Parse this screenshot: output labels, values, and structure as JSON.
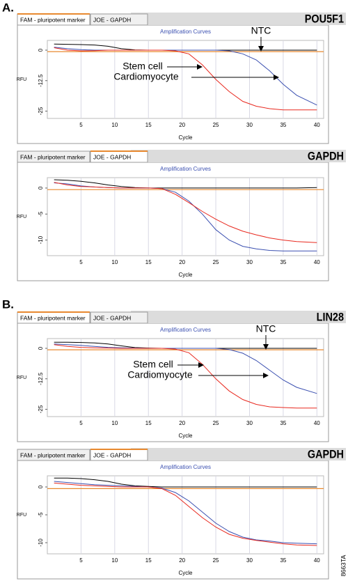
{
  "panels": [
    {
      "label": "A."
    },
    {
      "label": "B."
    }
  ],
  "figure_id": "8663TA",
  "chart_data": [
    {
      "type": "line",
      "tabs": [
        "FAM - pluripotent marker",
        "JOE - GAPDH"
      ],
      "active_tab": 0,
      "gene": "POU5F1",
      "title": "Amplification Curves",
      "xlabel": "Cycle",
      "ylabel": "RFU",
      "x": [
        1,
        3,
        5,
        7,
        9,
        11,
        13,
        15,
        17,
        19,
        21,
        23,
        25,
        27,
        29,
        31,
        33,
        35,
        37,
        40
      ],
      "xlim": [
        0,
        41
      ],
      "xticks": [
        5,
        10,
        15,
        20,
        25,
        30,
        35,
        40
      ],
      "ylim": [
        -28,
        4
      ],
      "yticks": [
        0,
        -12.5,
        -25
      ],
      "grid": true,
      "threshold": -0.6,
      "threshold_color": "#e8892f",
      "series": [
        {
          "color": "#000000",
          "values": [
            2.5,
            2.4,
            2.3,
            2.1,
            1.6,
            0.6,
            0.1,
            0,
            0,
            0,
            0,
            0,
            0,
            0,
            0,
            0,
            0,
            0,
            0,
            0
          ]
        },
        {
          "color": "#3a4fb0",
          "values": [
            1.2,
            0.6,
            0.2,
            0,
            0,
            0,
            0,
            0,
            0,
            0,
            0,
            0,
            0,
            -0.3,
            -1.5,
            -4,
            -8.5,
            -14,
            -18.5,
            -22.5
          ]
        },
        {
          "color": "#e8281e",
          "values": [
            1,
            0,
            -0.3,
            -0.2,
            0,
            0,
            0,
            0,
            0,
            -0.3,
            -1.5,
            -6,
            -12,
            -17,
            -21,
            -23,
            -24,
            -24.5,
            -24.5,
            -24.5
          ]
        }
      ],
      "annotations": [
        {
          "text": "NTC"
        },
        {
          "text": "Stem cell"
        },
        {
          "text": "Cardiomyocyte"
        }
      ]
    },
    {
      "type": "line",
      "tabs": [
        "FAM - pluripotent marker",
        "JOE - GAPDH"
      ],
      "active_tab": 1,
      "gene": "GAPDH",
      "title": "Amplification Curves",
      "xlabel": "Cycle",
      "ylabel": "RFU",
      "x": [
        1,
        3,
        5,
        7,
        9,
        11,
        13,
        15,
        17,
        19,
        21,
        23,
        25,
        27,
        29,
        31,
        33,
        35,
        37,
        40
      ],
      "xlim": [
        0,
        41
      ],
      "xticks": [
        5,
        10,
        15,
        20,
        25,
        30,
        35,
        40
      ],
      "ylim": [
        -13,
        2
      ],
      "yticks": [
        0,
        -5,
        -10
      ],
      "grid": true,
      "threshold": -0.3,
      "threshold_color": "#e8892f",
      "series": [
        {
          "color": "#000000",
          "values": [
            1.6,
            1.5,
            1.3,
            1,
            0.6,
            0.3,
            0.1,
            0,
            0,
            0,
            0,
            0,
            0,
            0,
            0,
            0,
            0,
            0,
            0,
            0.1
          ]
        },
        {
          "color": "#3a4fb0",
          "values": [
            1,
            0.8,
            0.4,
            0.2,
            0.1,
            0,
            0,
            0,
            -0.1,
            -0.8,
            -2.5,
            -5,
            -8,
            -10,
            -11.2,
            -11.7,
            -12,
            -12.1,
            -12.1,
            -12.1
          ]
        },
        {
          "color": "#e8281e",
          "values": [
            1.1,
            0.6,
            0.3,
            0.2,
            0.1,
            0,
            0,
            0,
            -0.1,
            -1.2,
            -2.8,
            -4.5,
            -6,
            -7.3,
            -8.3,
            -9,
            -9.6,
            -10,
            -10.3,
            -10.5
          ]
        }
      ],
      "annotations": []
    },
    {
      "type": "line",
      "tabs": [
        "FAM - pluripotent marker",
        "JOE - GAPDH"
      ],
      "active_tab": 0,
      "gene": "LIN28",
      "title": "Amplification Curves",
      "xlabel": "Cycle",
      "ylabel": "RFU",
      "x": [
        1,
        3,
        5,
        7,
        9,
        11,
        13,
        15,
        17,
        19,
        21,
        23,
        25,
        27,
        29,
        31,
        33,
        35,
        37,
        40
      ],
      "xlim": [
        0,
        41
      ],
      "xticks": [
        5,
        10,
        15,
        20,
        25,
        30,
        35,
        40
      ],
      "ylim": [
        -28,
        4
      ],
      "yticks": [
        0,
        -12.5,
        -25
      ],
      "grid": true,
      "threshold": -0.6,
      "threshold_color": "#e8892f",
      "series": [
        {
          "color": "#000000",
          "values": [
            2.5,
            2.5,
            2.4,
            2.2,
            1.8,
            1,
            0.3,
            0.1,
            0,
            0,
            0,
            0,
            0,
            0,
            0,
            0,
            0,
            0,
            0,
            0
          ]
        },
        {
          "color": "#3a4fb0",
          "values": [
            1.8,
            1.5,
            1.2,
            0.8,
            0.4,
            0.2,
            0.1,
            0,
            0,
            0,
            0,
            0,
            0,
            -0.5,
            -2,
            -5,
            -9,
            -13,
            -16,
            -18.5
          ]
        },
        {
          "color": "#e8281e",
          "values": [
            1.5,
            0.8,
            0.4,
            0.2,
            0.1,
            0,
            0,
            0,
            0,
            -0.3,
            -1.8,
            -6.5,
            -12.5,
            -17.5,
            -21,
            -23,
            -24,
            -24.3,
            -24.5,
            -24.5
          ]
        }
      ],
      "annotations": [
        {
          "text": "NTC"
        },
        {
          "text": "Stem cell"
        },
        {
          "text": "Cardiomyocyte"
        }
      ]
    },
    {
      "type": "line",
      "tabs": [
        "FAM - pluripotent marker",
        "JOE - GAPDH"
      ],
      "active_tab": 1,
      "gene": "GAPDH",
      "title": "Amplification Curves",
      "xlabel": "Cycle",
      "ylabel": "RFU",
      "x": [
        1,
        3,
        5,
        7,
        9,
        11,
        13,
        15,
        17,
        19,
        21,
        23,
        25,
        27,
        29,
        31,
        33,
        35,
        37,
        40
      ],
      "xlim": [
        0,
        41
      ],
      "xticks": [
        5,
        10,
        15,
        20,
        25,
        30,
        35,
        40
      ],
      "ylim": [
        -12,
        2
      ],
      "yticks": [
        0,
        -5,
        -10
      ],
      "grid": true,
      "threshold": -0.3,
      "threshold_color": "#e8892f",
      "series": [
        {
          "color": "#000000",
          "values": [
            1.6,
            1.6,
            1.5,
            1.3,
            1,
            0.5,
            0.2,
            0.1,
            0,
            0,
            0,
            0,
            0,
            0,
            0,
            0,
            0,
            0,
            0,
            0
          ]
        },
        {
          "color": "#3a4fb0",
          "values": [
            1,
            0.8,
            0.6,
            0.4,
            0.3,
            0.2,
            0.1,
            0,
            -0.2,
            -1,
            -2.5,
            -4.5,
            -6.5,
            -8,
            -9,
            -9.5,
            -9.7,
            -10,
            -10.1,
            -10.2
          ]
        },
        {
          "color": "#e8281e",
          "values": [
            0.7,
            0.5,
            0.3,
            0.2,
            0.1,
            0,
            0,
            0,
            -0.3,
            -1.5,
            -3.5,
            -5.5,
            -7.2,
            -8.5,
            -9.2,
            -9.6,
            -9.9,
            -10.2,
            -10.4,
            -10.5
          ]
        }
      ],
      "annotations": []
    }
  ]
}
